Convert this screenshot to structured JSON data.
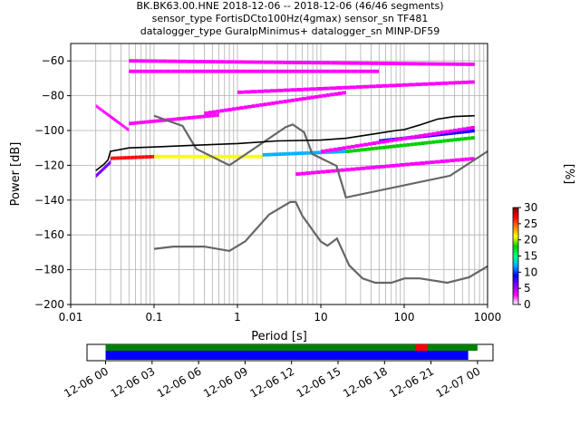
{
  "chart_data": {
    "type": "heatmap",
    "title_lines": [
      "BK.BK63.00.HNE   2018-12-06 -- 2018-12-06  (46/46 segments)",
      "sensor_type FortisDCto100Hz(4gmax) sensor_sn TF481",
      "datalogger_type GuralpMinimus+ datalogger_sn MINP-DF59"
    ],
    "xlabel": "Period [s]",
    "ylabel": "Power [dB]",
    "x_scale": "log",
    "xlim": [
      0.01,
      1000
    ],
    "ylim": [
      -200,
      -50
    ],
    "x_ticks": [
      {
        "value": 0.01,
        "label": "0.01"
      },
      {
        "value": 0.1,
        "label": "0.1"
      },
      {
        "value": 1,
        "label": "1"
      },
      {
        "value": 10,
        "label": "10"
      },
      {
        "value": 100,
        "label": "100"
      },
      {
        "value": 1000,
        "label": "1000"
      }
    ],
    "y_ticks": [
      {
        "value": -60,
        "label": "−60"
      },
      {
        "value": -80,
        "label": "−80"
      },
      {
        "value": -100,
        "label": "−100"
      },
      {
        "value": -120,
        "label": "−120"
      },
      {
        "value": -140,
        "label": "−140"
      },
      {
        "value": -160,
        "label": "−160"
      },
      {
        "value": -180,
        "label": "−180"
      },
      {
        "value": -200,
        "label": "−200"
      }
    ],
    "grid": true,
    "colorbar": {
      "label": "[%]",
      "range": [
        0,
        30
      ],
      "ticks": [
        {
          "value": 0,
          "label": "0"
        },
        {
          "value": 5,
          "label": "5"
        },
        {
          "value": 10,
          "label": "10"
        },
        {
          "value": 15,
          "label": "15"
        },
        {
          "value": 20,
          "label": "20"
        },
        {
          "value": 25,
          "label": "25"
        },
        {
          "value": 30,
          "label": "30"
        }
      ],
      "colors": [
        "#ffffff",
        "#ff00ff",
        "#7f00ff",
        "#0000ff",
        "#00b0ff",
        "#00ff80",
        "#00d000",
        "#ffff00",
        "#ff8000",
        "#ff0000",
        "#800000"
      ]
    },
    "model_noise": {
      "high": [
        [
          0.1,
          -91.5
        ],
        [
          0.22,
          -97.4
        ],
        [
          0.32,
          -110.5
        ],
        [
          0.8,
          -120
        ],
        [
          3.8,
          -98
        ],
        [
          4.6,
          -96.5
        ],
        [
          6.3,
          -101
        ],
        [
          7.9,
          -113.5
        ],
        [
          15.4,
          -120.3
        ],
        [
          20,
          -138.5
        ],
        [
          354.8,
          -126
        ],
        [
          1000,
          -112
        ]
      ],
      "low": [
        [
          0.1,
          -168
        ],
        [
          0.17,
          -166.7
        ],
        [
          0.4,
          -166.7
        ],
        [
          0.8,
          -169.2
        ],
        [
          1.24,
          -163.7
        ],
        [
          2.4,
          -148.3
        ],
        [
          4.3,
          -141.1
        ],
        [
          5,
          -141.1
        ],
        [
          6,
          -149
        ],
        [
          10,
          -163.8
        ],
        [
          12,
          -166.2
        ],
        [
          15.6,
          -162.1
        ],
        [
          21.9,
          -177.5
        ],
        [
          31.6,
          -185
        ],
        [
          45,
          -187.5
        ],
        [
          70,
          -187.5
        ],
        [
          101,
          -185
        ],
        [
          154,
          -185
        ],
        [
          328,
          -187.5
        ],
        [
          600,
          -184.4
        ],
        [
          1000,
          -178
        ]
      ]
    },
    "mean_psd": [
      [
        0.02,
        -123
      ],
      [
        0.025,
        -119.5
      ],
      [
        0.028,
        -117
      ],
      [
        0.03,
        -112
      ],
      [
        0.05,
        -110
      ],
      [
        0.1,
        -109.5
      ],
      [
        0.3,
        -108.5
      ],
      [
        1,
        -107.5
      ],
      [
        3,
        -106
      ],
      [
        10,
        -105.5
      ],
      [
        20,
        -104.5
      ],
      [
        50,
        -101.5
      ],
      [
        80,
        -100
      ],
      [
        100,
        -99.5
      ],
      [
        150,
        -97
      ],
      [
        250,
        -93.5
      ],
      [
        400,
        -92
      ],
      [
        700,
        -91.5
      ]
    ],
    "coverage": {
      "x_ticks": [
        {
          "hour": 0,
          "label": "12-06 00"
        },
        {
          "hour": 3,
          "label": "12-06 03"
        },
        {
          "hour": 6,
          "label": "12-06 06"
        },
        {
          "hour": 9,
          "label": "12-06 09"
        },
        {
          "hour": 12,
          "label": "12-06 12"
        },
        {
          "hour": 15,
          "label": "12-06 15"
        },
        {
          "hour": 18,
          "label": "12-06 18"
        },
        {
          "hour": 21,
          "label": "12-06 21"
        },
        {
          "hour": 24,
          "label": "12-07 00"
        }
      ],
      "range_hours": [
        -1.2,
        25
      ],
      "data_bar": {
        "start": 0,
        "end": 23.4,
        "color": "#0000ff"
      },
      "psd_bar": {
        "start": 0,
        "end": 24,
        "color": "#008000"
      },
      "gap": {
        "start": 20,
        "end": 20.75,
        "color": "#ff0000"
      }
    }
  }
}
